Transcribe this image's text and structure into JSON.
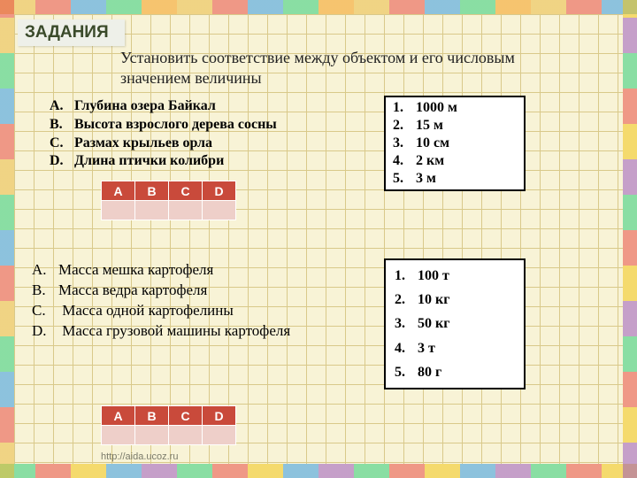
{
  "title": "ЗАДАНИЯ",
  "instruction": "Установить соответствие между объектом и его числовым значением величины",
  "task1": {
    "objects": [
      {
        "label": "A.",
        "text": "Глубина озера Байкал"
      },
      {
        "label": "B.",
        "text": "Высота  взрослого дерева  сосны"
      },
      {
        "label": "C.",
        "text": "Размах крыльев орла"
      },
      {
        "label": "D.",
        "text": "Длина  птички колибри"
      }
    ],
    "values": [
      {
        "label": "1.",
        "text": "1000 м"
      },
      {
        "label": "2.",
        "text": "15 м"
      },
      {
        "label": "3.",
        "text": "10 см"
      },
      {
        "label": "4.",
        "text": "2 км"
      },
      {
        "label": "5.",
        "text": "3 м"
      }
    ],
    "answer_headers": [
      "A",
      "B",
      "C",
      "D"
    ]
  },
  "task2": {
    "objects": [
      {
        "label": "A.",
        "text": "Масса  мешка картофеля"
      },
      {
        "label": "B.",
        "text": "Масса ведра картофеля"
      },
      {
        "label": "C.",
        "text": " Масса одной картофелины"
      },
      {
        "label": "D.",
        "text": " Масса грузовой машины картофеля"
      }
    ],
    "values": [
      {
        "label": "1.",
        "text": "100 т"
      },
      {
        "label": "2.",
        "text": "10 кг"
      },
      {
        "label": "3.",
        "text": "50 кг"
      },
      {
        "label": "4.",
        "text": "3 т"
      },
      {
        "label": "5.",
        "text": "80 г"
      }
    ],
    "answer_headers": [
      "A",
      "B",
      "C",
      "D"
    ]
  },
  "footer": "http://aida.ucoz.ru",
  "colors": {
    "header_bg": "#c94a3b",
    "empty_bg": "#eecfc9",
    "grid_bg": "#f8f3d6",
    "grid_line": "#d9c98a"
  }
}
